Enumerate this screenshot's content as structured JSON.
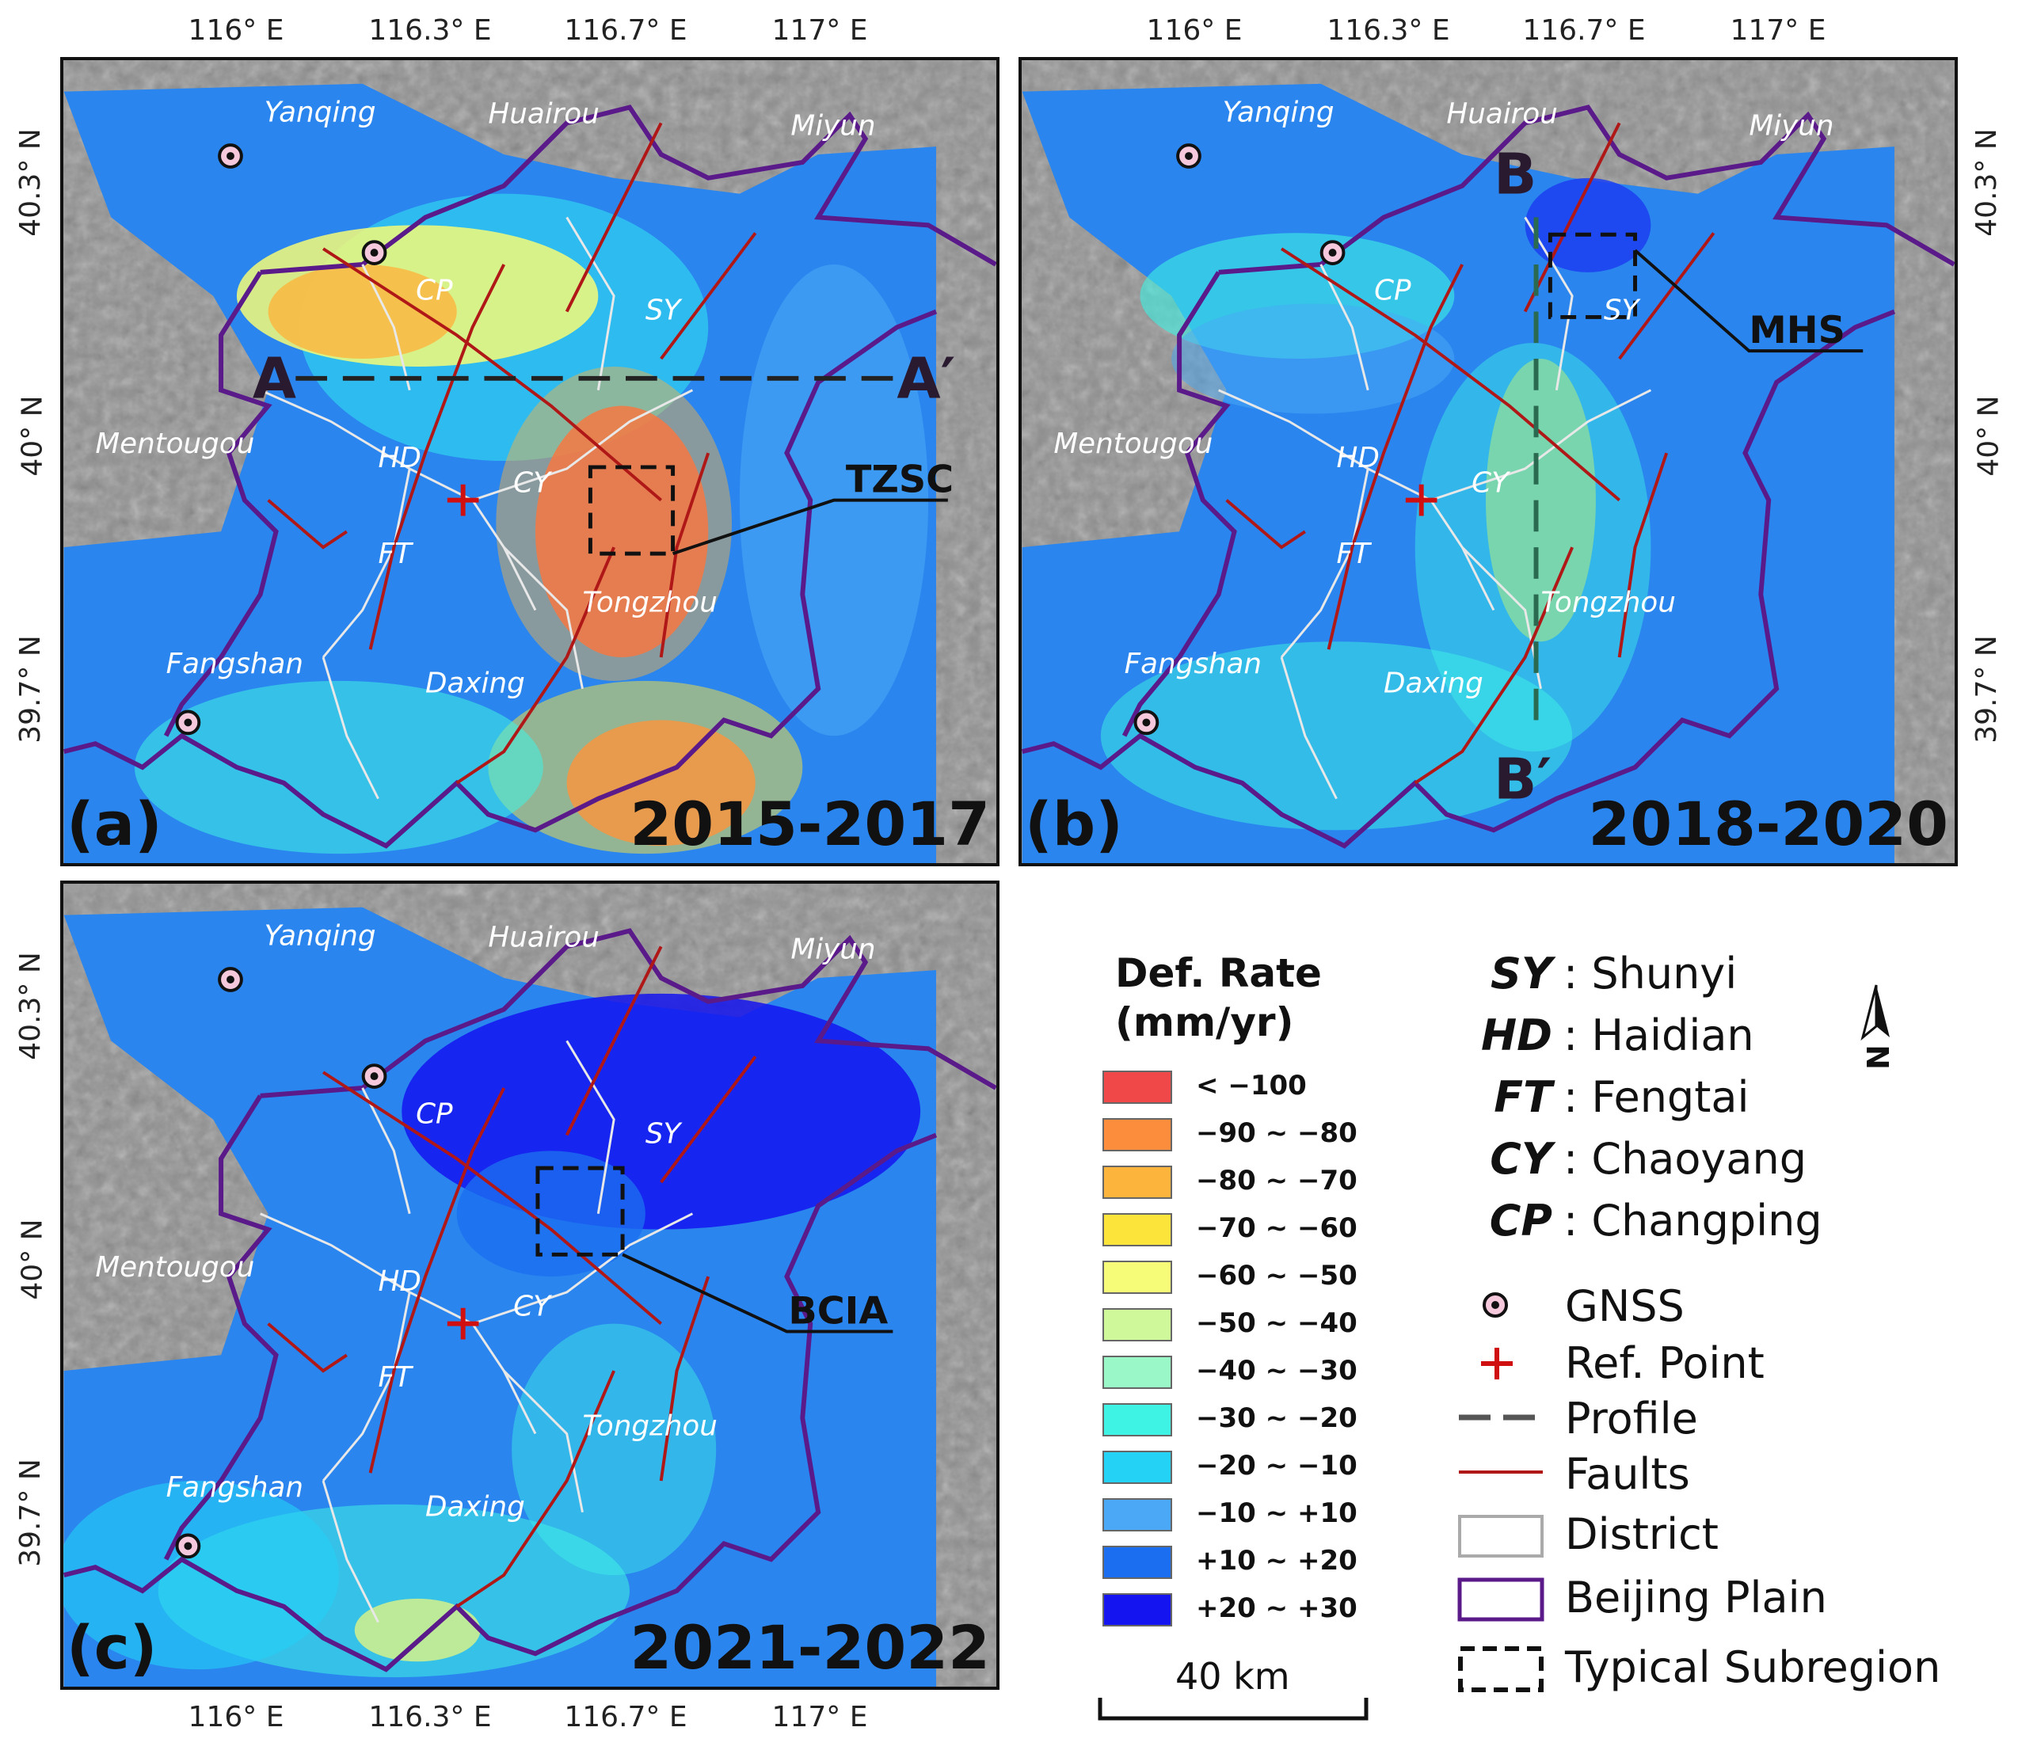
{
  "panels": [
    {
      "letter": "(a)",
      "period": "2015-2017"
    },
    {
      "letter": "(b)",
      "period": "2018-2020"
    },
    {
      "letter": "(c)",
      "period": "2021-2022"
    }
  ],
  "axes": {
    "lon_ticks": [
      "116° E",
      "116.3° E",
      "116.7° E",
      "117° E"
    ],
    "lat_ticks": [
      "40.3° N",
      "40° N",
      "39.7° N"
    ]
  },
  "place_labels": {
    "yanqing": "Yanqing",
    "huairou": "Huairou",
    "miyun": "Miyun",
    "mentougou": "Mentougou",
    "fangshan": "Fangshan",
    "tongzhou": "Tongzhou",
    "daxing": "Daxing",
    "cp": "CP",
    "sy": "SY",
    "hd": "HD",
    "cy": "CY",
    "ft": "FT"
  },
  "annotations": {
    "a_start": "A",
    "a_end": "A′",
    "b_start": "B",
    "b_end": "B′",
    "tzsc": "TZSC",
    "mhs": "MHS",
    "bcia": "BCIA"
  },
  "legend": {
    "title_line1": "Def. Rate",
    "title_line2": "(mm/yr)",
    "classes": [
      {
        "label": "< −100",
        "color": "#f04848"
      },
      {
        "label": "−90 ~ −80",
        "color": "#fb8d3c"
      },
      {
        "label": "−80 ~ −70",
        "color": "#fdb43c"
      },
      {
        "label": "−70 ~ −60",
        "color": "#fde43a"
      },
      {
        "label": "−60 ~ −50",
        "color": "#f6fb78"
      },
      {
        "label": "−50 ~ −40",
        "color": "#cff89a"
      },
      {
        "label": "−40 ~ −30",
        "color": "#9af8c8"
      },
      {
        "label": "−30 ~ −20",
        "color": "#3ef2e4"
      },
      {
        "label": "−20 ~ −10",
        "color": "#24d2f6"
      },
      {
        "label": "−10 ~ +10",
        "color": "#4aa8f6"
      },
      {
        "label": "+10 ~ +20",
        "color": "#1c6ef0"
      },
      {
        "label": "+20 ~ +30",
        "color": "#1414f0"
      }
    ],
    "scale_bar": "40 km",
    "north": "N"
  },
  "abbreviations": [
    {
      "code": "SY",
      "name": ": Shunyi"
    },
    {
      "code": "HD",
      "name": ": Haidian"
    },
    {
      "code": "FT",
      "name": ": Fengtai"
    },
    {
      "code": "CY",
      "name": ": Chaoyang"
    },
    {
      "code": "CP",
      "name": ": Changping"
    }
  ],
  "symbols": {
    "gnss": "GNSS",
    "ref_point": "Ref. Point",
    "profile": "Profile",
    "faults": "Faults",
    "district": "District",
    "beijing_plain": "Beijing Plain",
    "typical_subregion": "Typical Subregion"
  },
  "colors": {
    "plain_outline": "#5a1a8a",
    "fault": "#b01818",
    "district": "#e8e8e8",
    "ref_point": "#d01010",
    "terrain": "#9a9a9a"
  }
}
